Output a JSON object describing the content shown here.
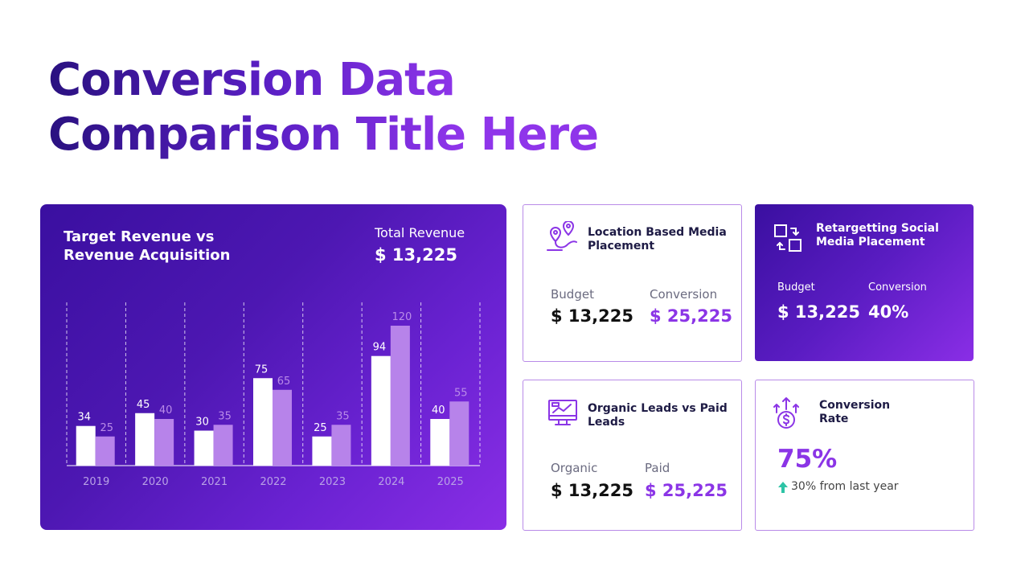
{
  "title": {
    "line1": "Conversion Data",
    "line2": "Comparison Title Here"
  },
  "chart_card": {
    "title": "Target Revenue vs Revenue Acquisition",
    "total_label": "Total Revenue",
    "total_value": "$ 13,225"
  },
  "chart_data": {
    "type": "bar",
    "categories": [
      "2019",
      "2020",
      "2021",
      "2022",
      "2023",
      "2024",
      "2025"
    ],
    "series": [
      {
        "values": [
          34,
          45,
          30,
          75,
          25,
          94,
          40
        ]
      },
      {
        "values": [
          25,
          40,
          35,
          65,
          35,
          120,
          55
        ]
      }
    ],
    "title": "Target Revenue vs Revenue Acquisition",
    "ylim": [
      0,
      120
    ],
    "colors": [
      "#ffffff",
      "#b783ea"
    ],
    "grid": "vertical dashed separators"
  },
  "cards": {
    "location": {
      "heading": "Location Based Media Placement",
      "label1": "Budget",
      "value1": "$ 13,225",
      "label2": "Conversion",
      "value2": "$ 25,225",
      "icon": "map-route-icon"
    },
    "retargeting": {
      "heading": "Retargetting Social Media Placement",
      "label1": "Budget",
      "value1": "$ 13,225",
      "label2": "Conversion",
      "value2": "40%",
      "icon": "swap-squares-icon"
    },
    "organic": {
      "heading": "Organic Leads vs Paid Leads",
      "label1": "Organic",
      "value1": "$ 13,225",
      "label2": "Paid",
      "value2": "$ 25,225",
      "icon": "monitor-chart-icon"
    },
    "conversion_rate": {
      "heading": "Conversion Rate",
      "value": "75%",
      "note": "30% from last year",
      "icon": "money-growth-icon"
    }
  },
  "colors": {
    "accent": "#8b35e6",
    "dark": "#2a1180",
    "up_arrow": "#2ec4a6"
  }
}
